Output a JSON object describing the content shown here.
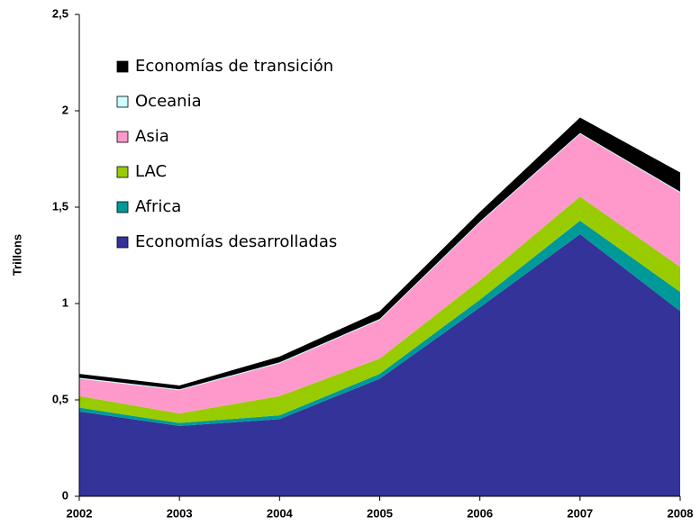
{
  "chart_data": {
    "type": "stacked_area",
    "y_label": "Trillons",
    "categories": [
      "2002",
      "2003",
      "2004",
      "2005",
      "2006",
      "2007",
      "2008"
    ],
    "series": [
      {
        "name": "Economías desarrolladas",
        "color": "#333399",
        "values": [
          0.44,
          0.365,
          0.4,
          0.61,
          0.98,
          1.36,
          0.96
        ]
      },
      {
        "name": "Africa",
        "color": "#009999",
        "values": [
          0.02,
          0.015,
          0.02,
          0.025,
          0.04,
          0.07,
          0.1
        ]
      },
      {
        "name": "LAC",
        "color": "#99cc00",
        "values": [
          0.06,
          0.05,
          0.1,
          0.08,
          0.1,
          0.125,
          0.13
        ]
      },
      {
        "name": "Asia",
        "color": "#ff99cc",
        "values": [
          0.09,
          0.12,
          0.17,
          0.2,
          0.3,
          0.325,
          0.385
        ]
      },
      {
        "name": "Oceania",
        "color": "#ccffff",
        "values": [
          0.005,
          0.005,
          0.005,
          0.005,
          0.005,
          0.005,
          0.005
        ]
      },
      {
        "name": "Economías de transición",
        "color": "#000000",
        "values": [
          0.02,
          0.02,
          0.03,
          0.04,
          0.05,
          0.08,
          0.1
        ]
      }
    ],
    "ylim": [
      0,
      2.5
    ],
    "yticks": [
      0,
      {
        "value": 0.5,
        "label": "0,5"
      },
      1,
      {
        "value": 1.5,
        "label": "1,5"
      },
      2,
      {
        "value": 2.5,
        "label": "2,5"
      }
    ],
    "legend": "upper left"
  }
}
